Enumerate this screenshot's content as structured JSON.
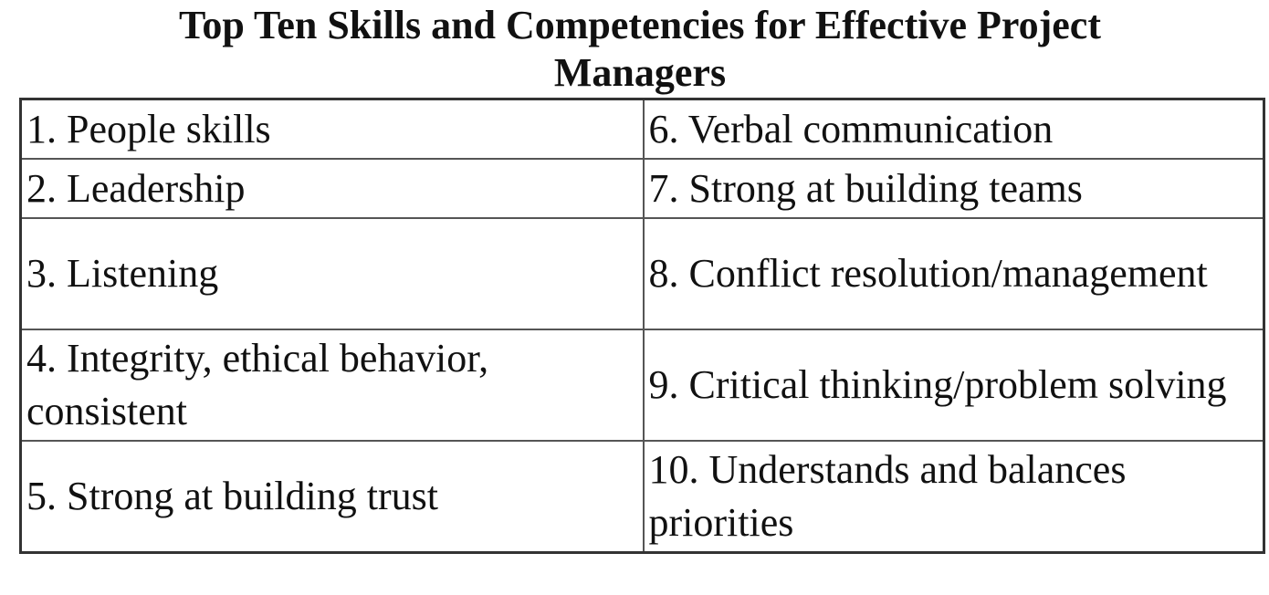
{
  "document": {
    "title_line1": "Top Ten Skills and Competencies for Effective Project",
    "title_line2": "Managers"
  },
  "skills_table": {
    "rows": [
      {
        "left": "1. People skills",
        "right": "6. Verbal communication"
      },
      {
        "left": "2. Leadership",
        "right": "7. Strong at building teams"
      },
      {
        "left": "3. Listening",
        "right": "8. Conflict resolution/management"
      },
      {
        "left": "4. Integrity, ethical behavior, consistent",
        "right": "9. Critical thinking/problem solving"
      },
      {
        "left": "5. Strong at building trust",
        "right": "10. Understands and balances priorities"
      }
    ]
  }
}
